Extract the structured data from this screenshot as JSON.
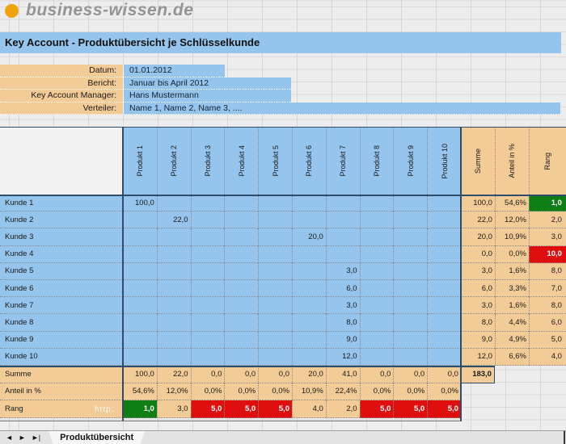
{
  "brand": {
    "logo_text": "business-wissen.de"
  },
  "title": "Key Account - Produktübersicht je Schlüsselkunde",
  "colors": {
    "blue": "#95c5ed",
    "orange": "#f3cb96",
    "navy": "#2e4d6b",
    "green": "#0f7e14",
    "red": "#df0f0f",
    "logo_orange": "#f0a30a"
  },
  "form": {
    "fields": [
      {
        "label": "Datum:",
        "value": "01.01.2012"
      },
      {
        "label": "Bericht:",
        "value": "Januar bis April 2012"
      },
      {
        "label": "Key Account Manager:",
        "value": "Hans Mustermann"
      },
      {
        "label": "Verteiler:",
        "value": "Name 1, Name 2, Name 3, ...."
      }
    ]
  },
  "table": {
    "product_columns": [
      "Produkt 1",
      "Produkt 2",
      "Produkt 3",
      "Produkt 4",
      "Produkt 5",
      "Produkt 6",
      "Produkt 7",
      "Produkt 8",
      "Produkt 9",
      "Produkt 10"
    ],
    "summary_columns": [
      "Summe",
      "Anteil in %",
      "Rang"
    ],
    "rows": [
      {
        "label": "Kunde 1",
        "values": [
          "100,0",
          "",
          "",
          "",
          "",
          "",
          "",
          "",
          "",
          ""
        ],
        "summe": "100,0",
        "anteil": "54,6%",
        "rang": "1,0",
        "rang_color": "green"
      },
      {
        "label": "Kunde 2",
        "values": [
          "",
          "22,0",
          "",
          "",
          "",
          "",
          "",
          "",
          "",
          ""
        ],
        "summe": "22,0",
        "anteil": "12,0%",
        "rang": "2,0",
        "rang_color": "none"
      },
      {
        "label": "Kunde 3",
        "values": [
          "",
          "",
          "",
          "",
          "",
          "20,0",
          "",
          "",
          "",
          ""
        ],
        "summe": "20,0",
        "anteil": "10,9%",
        "rang": "3,0",
        "rang_color": "none"
      },
      {
        "label": "Kunde 4",
        "values": [
          "",
          "",
          "",
          "",
          "",
          "",
          "",
          "",
          "",
          ""
        ],
        "summe": "0,0",
        "anteil": "0,0%",
        "rang": "10,0",
        "rang_color": "red"
      },
      {
        "label": "Kunde 5",
        "values": [
          "",
          "",
          "",
          "",
          "",
          "",
          "3,0",
          "",
          "",
          ""
        ],
        "summe": "3,0",
        "anteil": "1,6%",
        "rang": "8,0",
        "rang_color": "none"
      },
      {
        "label": "Kunde 6",
        "values": [
          "",
          "",
          "",
          "",
          "",
          "",
          "6,0",
          "",
          "",
          ""
        ],
        "summe": "6,0",
        "anteil": "3,3%",
        "rang": "7,0",
        "rang_color": "none"
      },
      {
        "label": "Kunde 7",
        "values": [
          "",
          "",
          "",
          "",
          "",
          "",
          "3,0",
          "",
          "",
          ""
        ],
        "summe": "3,0",
        "anteil": "1,6%",
        "rang": "8,0",
        "rang_color": "none"
      },
      {
        "label": "Kunde 8",
        "values": [
          "",
          "",
          "",
          "",
          "",
          "",
          "8,0",
          "",
          "",
          ""
        ],
        "summe": "8,0",
        "anteil": "4,4%",
        "rang": "6,0",
        "rang_color": "none"
      },
      {
        "label": "Kunde 9",
        "values": [
          "",
          "",
          "",
          "",
          "",
          "",
          "9,0",
          "",
          "",
          ""
        ],
        "summe": "9,0",
        "anteil": "4,9%",
        "rang": "5,0",
        "rang_color": "none"
      },
      {
        "label": "Kunde 10",
        "values": [
          "",
          "",
          "",
          "",
          "",
          "",
          "12,0",
          "",
          "",
          ""
        ],
        "summe": "12,0",
        "anteil": "6,6%",
        "rang": "4,0",
        "rang_color": "none"
      }
    ],
    "footer": {
      "summe": {
        "label": "Summe",
        "values": [
          "100,0",
          "22,0",
          "0,0",
          "0,0",
          "0,0",
          "20,0",
          "41,0",
          "0,0",
          "0,0",
          "0,0"
        ],
        "total": "183,0"
      },
      "anteil": {
        "label": "Anteil in %",
        "values": [
          "54,6%",
          "12,0%",
          "0,0%",
          "0,0%",
          "0,0%",
          "10,9%",
          "22,4%",
          "0,0%",
          "0,0%",
          "0,0%"
        ]
      },
      "rang": {
        "label": "Rang",
        "watermark": "http:",
        "values": [
          "1,0",
          "3,0",
          "5,0",
          "5,0",
          "5,0",
          "4,0",
          "2,0",
          "5,0",
          "5,0",
          "5,0"
        ],
        "colors": [
          "green",
          "none",
          "red",
          "red",
          "red",
          "none",
          "none",
          "red",
          "red",
          "red"
        ]
      }
    }
  },
  "tabbar": {
    "nav": [
      "◄",
      "►",
      "►|"
    ],
    "tab_label": "Produktübersicht"
  }
}
